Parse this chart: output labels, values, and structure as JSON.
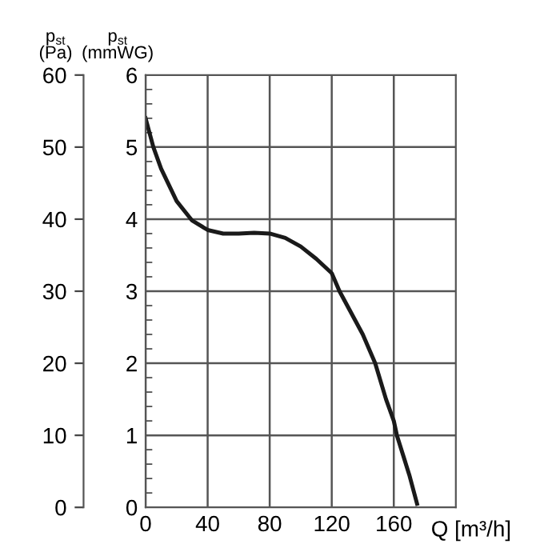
{
  "chart_data": {
    "type": "line",
    "xlabel": "Q [m³/h]",
    "ylabel": "p$_{st}$\n(mmWG)",
    "y2label": "p$_{st}$\n(Pa)",
    "x": [
      0,
      5,
      10,
      20,
      30,
      40,
      50,
      60,
      70,
      80,
      90,
      100,
      110,
      120,
      125,
      130,
      140,
      148,
      155,
      160,
      162,
      170,
      175
    ],
    "series": [
      {
        "color": "#1a1a1a",
        "values": [
          5.4,
          5.0,
          4.7,
          4.25,
          3.98,
          3.85,
          3.8,
          3.8,
          3.81,
          3.8,
          3.74,
          3.62,
          3.45,
          3.25,
          3.0,
          2.8,
          2.4,
          2.0,
          1.5,
          1.2,
          1.0,
          0.45,
          0.05
        ]
      }
    ],
    "xlim": [
      0,
      200
    ],
    "xticks": [
      0,
      40,
      80,
      120,
      160
    ],
    "ylim": [
      0,
      6
    ],
    "yticks": [
      0,
      1,
      2,
      3,
      4,
      5,
      6
    ],
    "y2lim": [
      0,
      60
    ],
    "y2ticks": [
      0,
      10,
      20,
      30,
      40,
      50,
      60
    ],
    "grid": true,
    "marker": "none",
    "line_style": "solid"
  }
}
